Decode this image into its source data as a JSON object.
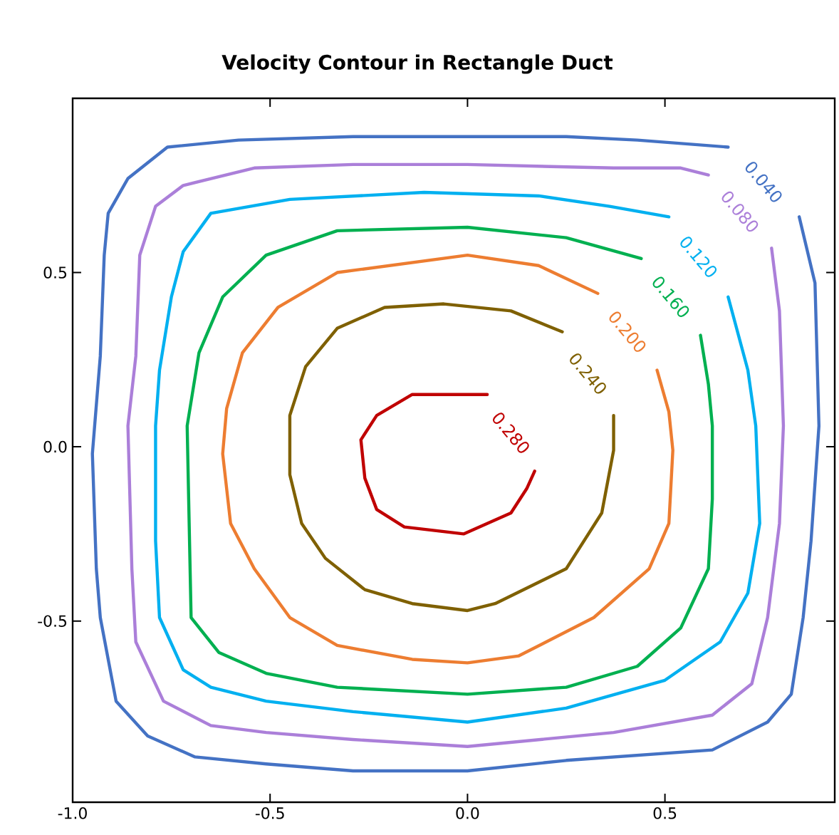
{
  "chart_data": {
    "type": "line",
    "title": "Velocity Contour in Rectangle Duct",
    "xlim": [
      -1.0,
      0.93
    ],
    "ylim": [
      -1.02,
      1.0
    ],
    "xticks": [
      {
        "value": -1.0,
        "label": "-1.0"
      },
      {
        "value": -0.5,
        "label": "-0.5"
      },
      {
        "value": 0.0,
        "label": "0.0"
      },
      {
        "value": 0.5,
        "label": "0.5"
      }
    ],
    "yticks": [
      {
        "value": -0.5,
        "label": "-0.5"
      },
      {
        "value": 0.0,
        "label": "0.0"
      },
      {
        "value": 0.5,
        "label": "0.5"
      }
    ],
    "series": [
      {
        "name": "0.040",
        "color": "#4472c4",
        "x": [
          0.66,
          0.43,
          0.25,
          -0.29,
          -0.58,
          -0.76,
          -0.86,
          -0.91,
          -0.92,
          -0.93,
          -0.95,
          -0.94,
          -0.93,
          -0.89,
          -0.81,
          -0.69,
          -0.51,
          -0.29,
          0.0,
          0.25,
          0.62,
          0.76,
          0.82,
          0.85,
          0.87,
          0.89,
          0.88,
          0.84
        ],
        "values": [
          0.86,
          0.88,
          0.89,
          0.89,
          0.88,
          0.86,
          0.77,
          0.67,
          0.55,
          0.26,
          -0.02,
          -0.35,
          -0.49,
          -0.73,
          -0.83,
          -0.89,
          -0.91,
          -0.93,
          -0.93,
          -0.9,
          -0.87,
          -0.79,
          -0.71,
          -0.49,
          -0.27,
          0.06,
          0.47,
          0.66
        ]
      },
      {
        "name": "0.080",
        "color": "#ab7fd9",
        "x": [
          0.61,
          0.54,
          0.37,
          0.0,
          -0.29,
          -0.54,
          -0.72,
          -0.79,
          -0.83,
          -0.84,
          -0.86,
          -0.85,
          -0.84,
          -0.77,
          -0.65,
          -0.51,
          -0.29,
          0.0,
          0.37,
          0.62,
          0.72,
          0.76,
          0.79,
          0.8,
          0.79,
          0.77
        ],
        "values": [
          0.78,
          0.8,
          0.8,
          0.81,
          0.81,
          0.8,
          0.75,
          0.69,
          0.55,
          0.26,
          0.06,
          -0.35,
          -0.56,
          -0.73,
          -0.8,
          -0.82,
          -0.84,
          -0.86,
          -0.82,
          -0.77,
          -0.68,
          -0.49,
          -0.22,
          0.06,
          0.39,
          0.57
        ]
      },
      {
        "name": "0.120",
        "color": "#00b0f0",
        "x": [
          0.51,
          0.36,
          0.18,
          -0.11,
          -0.45,
          -0.65,
          -0.72,
          -0.75,
          -0.78,
          -0.79,
          -0.79,
          -0.78,
          -0.72,
          -0.65,
          -0.51,
          -0.29,
          0.0,
          0.25,
          0.5,
          0.64,
          0.71,
          0.74,
          0.73,
          0.71,
          0.66
        ],
        "values": [
          0.66,
          0.69,
          0.72,
          0.73,
          0.71,
          0.67,
          0.56,
          0.43,
          0.22,
          0.06,
          -0.27,
          -0.49,
          -0.64,
          -0.69,
          -0.73,
          -0.76,
          -0.79,
          -0.75,
          -0.67,
          -0.56,
          -0.42,
          -0.22,
          0.06,
          0.22,
          0.43
        ]
      },
      {
        "name": "0.160",
        "color": "#00b050",
        "x": [
          0.44,
          0.25,
          0.0,
          -0.33,
          -0.51,
          -0.62,
          -0.68,
          -0.71,
          -0.7,
          -0.63,
          -0.51,
          -0.33,
          0.0,
          0.25,
          0.43,
          0.54,
          0.61,
          0.62,
          0.62,
          0.61,
          0.59
        ],
        "values": [
          0.54,
          0.6,
          0.63,
          0.62,
          0.55,
          0.43,
          0.27,
          0.06,
          -0.49,
          -0.59,
          -0.65,
          -0.69,
          -0.71,
          -0.69,
          -0.63,
          -0.52,
          -0.35,
          -0.15,
          0.06,
          0.18,
          0.32
        ]
      },
      {
        "name": "0.200",
        "color": "#ed7d31",
        "x": [
          0.33,
          0.18,
          0.0,
          -0.33,
          -0.48,
          -0.57,
          -0.61,
          -0.62,
          -0.6,
          -0.54,
          -0.45,
          -0.33,
          -0.14,
          0.0,
          0.13,
          0.32,
          0.46,
          0.51,
          0.52,
          0.51,
          0.48
        ],
        "values": [
          0.44,
          0.52,
          0.55,
          0.5,
          0.4,
          0.27,
          0.11,
          -0.02,
          -0.22,
          -0.35,
          -0.49,
          -0.57,
          -0.61,
          -0.62,
          -0.6,
          -0.49,
          -0.35,
          -0.22,
          -0.01,
          0.1,
          0.22
        ]
      },
      {
        "name": "0.240",
        "color": "#7f6000",
        "x": [
          0.24,
          0.11,
          -0.06,
          -0.21,
          -0.33,
          -0.41,
          -0.45,
          -0.45,
          -0.42,
          -0.36,
          -0.26,
          -0.14,
          0.0,
          0.07,
          0.25,
          0.34,
          0.37,
          0.37
        ],
        "values": [
          0.33,
          0.39,
          0.41,
          0.4,
          0.34,
          0.23,
          0.09,
          -0.08,
          -0.22,
          -0.32,
          -0.41,
          -0.45,
          -0.47,
          -0.45,
          -0.35,
          -0.19,
          -0.01,
          0.09
        ]
      },
      {
        "name": "0.280",
        "color": "#c00000",
        "x": [
          0.05,
          -0.14,
          -0.23,
          -0.27,
          -0.26,
          -0.23,
          -0.16,
          -0.01,
          0.11,
          0.15,
          0.17
        ],
        "values": [
          0.15,
          0.15,
          0.09,
          0.02,
          -0.09,
          -0.18,
          -0.23,
          -0.25,
          -0.19,
          -0.12,
          -0.07
        ]
      }
    ]
  }
}
